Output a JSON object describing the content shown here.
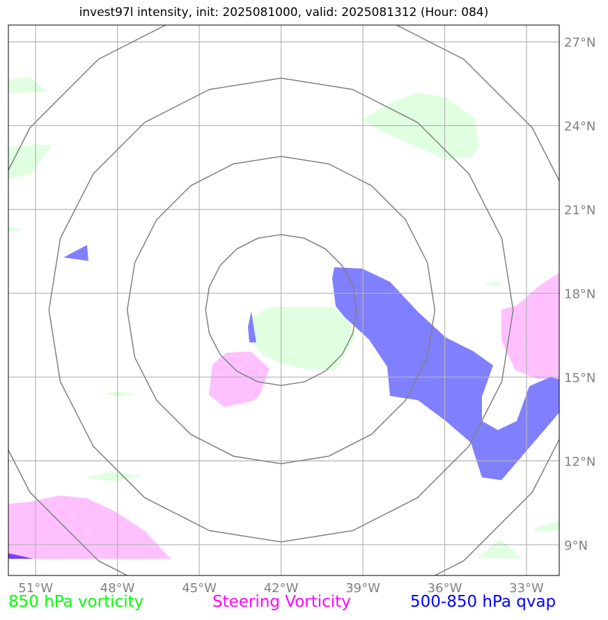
{
  "title": "invest97l intensity, init: 2025081000, valid: 2025081312 (Hour: 084)",
  "map": {
    "lon_range": [
      -52,
      -31.8
    ],
    "lat_range": [
      7.9,
      27.6
    ],
    "lon_ticks": [
      {
        "value": -51,
        "label": "51°W"
      },
      {
        "value": -48,
        "label": "48°W"
      },
      {
        "value": -45,
        "label": "45°W"
      },
      {
        "value": -42,
        "label": "42°W"
      },
      {
        "value": -39,
        "label": "39°W"
      },
      {
        "value": -36,
        "label": "36°W"
      },
      {
        "value": -33,
        "label": "33°W"
      }
    ],
    "lat_ticks": [
      {
        "value": 27,
        "label": "27°N"
      },
      {
        "value": 24,
        "label": "24°N"
      },
      {
        "value": 21,
        "label": "21°N"
      },
      {
        "value": 18,
        "label": "18°N"
      },
      {
        "value": 15,
        "label": "15°N"
      },
      {
        "value": 12,
        "label": "12°N"
      },
      {
        "value": 9,
        "label": "9°N"
      }
    ],
    "range_rings": {
      "center": {
        "lon": -42,
        "lat": 17.4
      },
      "radii_deg_lat": [
        2.7,
        5.5,
        8.3,
        11.1
      ]
    },
    "colors": {
      "vort850": "#e0ffe0",
      "steering": "#ffc0ff",
      "qvap": "#8080ff",
      "rings": "#808080",
      "grid": "#b4b4b4"
    }
  },
  "legend": {
    "vort850": {
      "label": "850 hPa vorticity",
      "color": "#00ff00"
    },
    "steering": {
      "label": "Steering Vorticity",
      "color": "#ff00ff"
    },
    "qvap": {
      "label": "500-850 hPa qvap",
      "color": "#0000ff"
    }
  }
}
